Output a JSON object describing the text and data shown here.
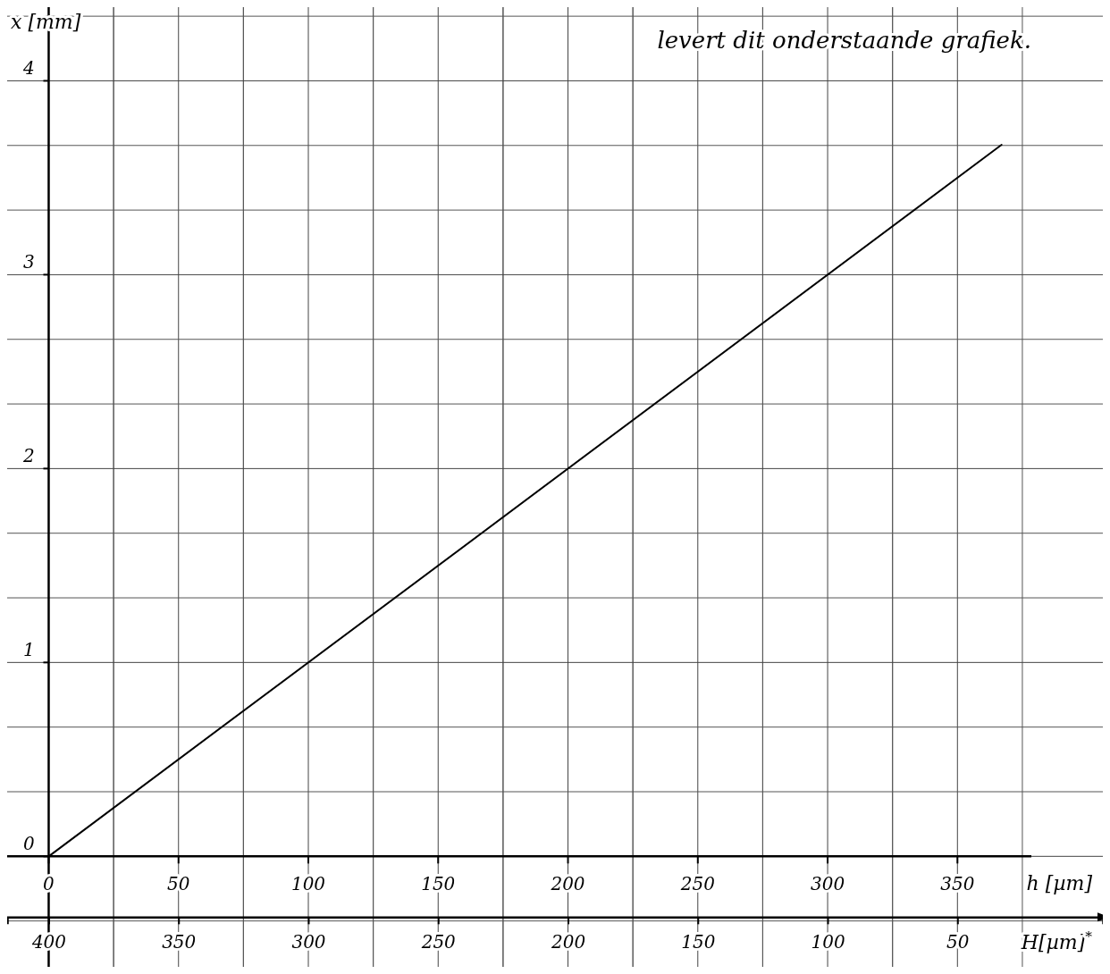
{
  "chart_data": {
    "type": "line",
    "annotations": [
      "levert dit onderstaande grafiek."
    ],
    "xlabel": "h [µm]",
    "ylabel": "x [mm]",
    "x2label": "H[µm]$^{*}$",
    "xlim": [
      -16,
      406
    ],
    "xticks": [
      0,
      50,
      100,
      150,
      200,
      250,
      300,
      350
    ],
    "x2lim": [
      416,
      -6
    ],
    "x2ticks": [
      400,
      350,
      300,
      250,
      200,
      150,
      100,
      50
    ],
    "ylim": [
      -0.57,
      4.38
    ],
    "yticks": [
      0,
      1,
      2,
      3,
      4
    ],
    "grid": true,
    "marker": "none",
    "line_style": "solid",
    "series": [
      {
        "color": "#000000",
        "x": [
          0,
          367
        ],
        "values": [
          0,
          3.67
        ]
      }
    ]
  }
}
